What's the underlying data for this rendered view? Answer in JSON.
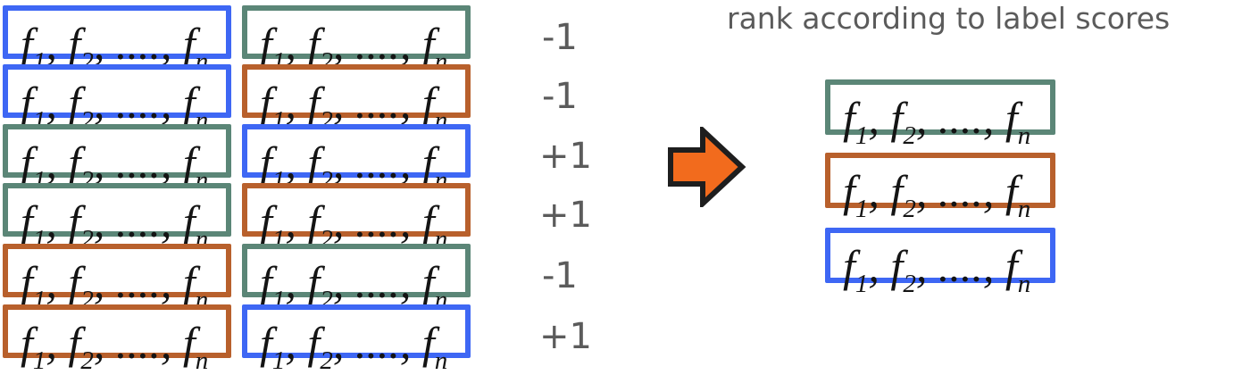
{
  "title": "rank according to label scores",
  "feature_vector": {
    "f": "f",
    "sub1": "1",
    "sub2": "2",
    "subn": "n",
    "sep": ", ",
    "ellipsis": "....,"
  },
  "colors": {
    "blue": "#3e67f4",
    "green": "#5b8677",
    "orange": "#b8602c",
    "arrow_fill": "#f26b1d",
    "arrow_stroke": "#1e1e1e",
    "text": "#5b5b5b"
  },
  "pairs": [
    {
      "left": "blue",
      "right": "green",
      "label": "-1"
    },
    {
      "left": "blue",
      "right": "orange",
      "label": "-1"
    },
    {
      "left": "green",
      "right": "blue",
      "label": "+1"
    },
    {
      "left": "green",
      "right": "orange",
      "label": "+1"
    },
    {
      "left": "orange",
      "right": "green",
      "label": "-1"
    },
    {
      "left": "orange",
      "right": "blue",
      "label": "+1"
    }
  ],
  "ranking": [
    "green",
    "orange",
    "blue"
  ]
}
